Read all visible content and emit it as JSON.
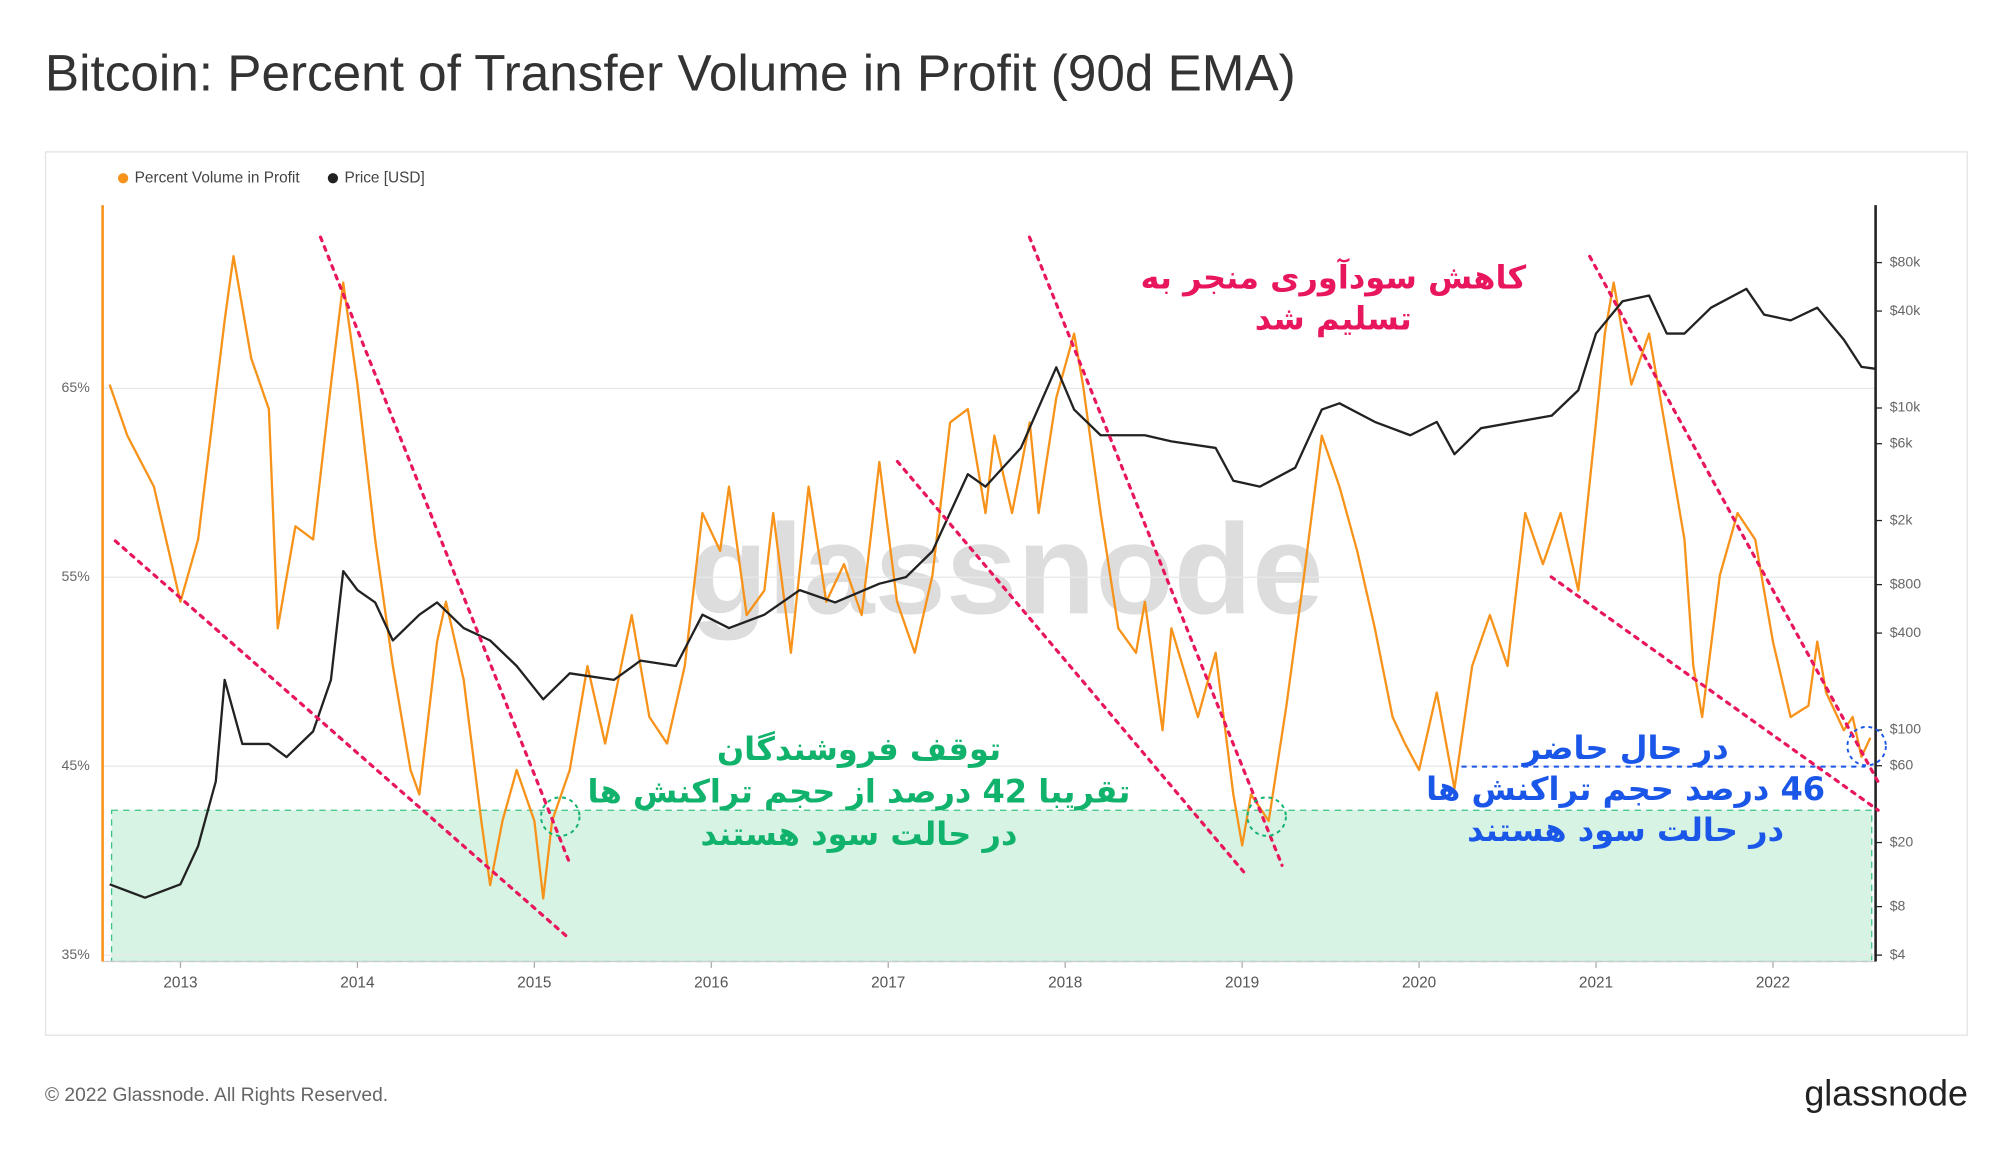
{
  "chart_data": {
    "type": "line",
    "title": "Bitcoin: Percent of Transfer Volume in Profit (90d EMA)",
    "watermark": "glassnode",
    "footer": "© 2022 Glassnode. All Rights Reserved.",
    "logo": "glassnode",
    "legend_position": "top-left",
    "xlim": [
      2012.56,
      2022.58
    ],
    "xticks": [
      2013,
      2014,
      2015,
      2016,
      2017,
      2018,
      2019,
      2020,
      2021,
      2022
    ],
    "ylim": [
      35,
      74.7
    ],
    "yticks": [
      {
        "value": 35,
        "label": "35%"
      },
      {
        "value": 45,
        "label": "45%"
      },
      {
        "value": 55,
        "label": "55%"
      },
      {
        "value": 65,
        "label": "65%"
      }
    ],
    "y2lim": [
      4,
      182000
    ],
    "y2log": true,
    "y2ticks": [
      {
        "value": 4,
        "label": "$4"
      },
      {
        "value": 8,
        "label": "$8"
      },
      {
        "value": 20,
        "label": "$20"
      },
      {
        "value": 60,
        "label": "$60"
      },
      {
        "value": 100,
        "label": "$100"
      },
      {
        "value": 400,
        "label": "$400"
      },
      {
        "value": 800,
        "label": "$800"
      },
      {
        "value": 2000,
        "label": "$2k"
      },
      {
        "value": 6000,
        "label": "$6k"
      },
      {
        "value": 10000,
        "label": "$10k"
      },
      {
        "value": 40000,
        "label": "$40k"
      },
      {
        "value": 80000,
        "label": "$80k"
      }
    ],
    "grid": true,
    "series": [
      {
        "name": "Percent Volume in Profit",
        "color": "#f7931a",
        "x": [
          2012.6,
          2012.7,
          2012.85,
          2013.0,
          2013.1,
          2013.25,
          2013.3,
          2013.4,
          2013.5,
          2013.55,
          2013.65,
          2013.75,
          2013.85,
          2013.92,
          2014.0,
          2014.1,
          2014.2,
          2014.3,
          2014.35,
          2014.45,
          2014.5,
          2014.6,
          2014.7,
          2014.75,
          2014.82,
          2014.9,
          2015.0,
          2015.05,
          2015.1,
          2015.2,
          2015.3,
          2015.4,
          2015.55,
          2015.65,
          2015.75,
          2015.85,
          2015.95,
          2016.05,
          2016.1,
          2016.2,
          2016.3,
          2016.35,
          2016.45,
          2016.55,
          2016.65,
          2016.75,
          2016.85,
          2016.95,
          2017.05,
          2017.15,
          2017.25,
          2017.35,
          2017.45,
          2017.55,
          2017.6,
          2017.7,
          2017.8,
          2017.85,
          2017.95,
          2018.05,
          2018.1,
          2018.2,
          2018.3,
          2018.4,
          2018.45,
          2018.55,
          2018.6,
          2018.75,
          2018.85,
          2018.95,
          2019.0,
          2019.05,
          2019.15,
          2019.25,
          2019.35,
          2019.45,
          2019.55,
          2019.65,
          2019.75,
          2019.85,
          2019.92,
          2020.0,
          2020.1,
          2020.2,
          2020.3,
          2020.4,
          2020.5,
          2020.6,
          2020.7,
          2020.8,
          2020.9,
          2021.0,
          2021.05,
          2021.1,
          2021.2,
          2021.3,
          2021.4,
          2021.5,
          2021.55,
          2021.6,
          2021.7,
          2021.8,
          2021.9,
          2022.0,
          2022.1,
          2022.2,
          2022.25,
          2022.3,
          2022.4,
          2022.45,
          2022.5,
          2022.55
        ],
        "values": [
          65.2,
          62.5,
          59.8,
          53.7,
          57,
          68.6,
          72,
          66.6,
          63.9,
          52.3,
          57.7,
          57,
          65.2,
          70.6,
          65.2,
          57,
          50.3,
          44.8,
          43.5,
          51.6,
          53.7,
          49.6,
          42.1,
          38.7,
          42.1,
          44.8,
          42.1,
          38,
          42.1,
          44.8,
          50.3,
          46.2,
          53,
          47.6,
          46.2,
          50.3,
          58.4,
          56.4,
          59.8,
          53,
          54.3,
          58.4,
          51,
          59.8,
          53.7,
          55.7,
          53,
          61.1,
          53.7,
          51,
          55.1,
          63.2,
          63.9,
          58.4,
          62.5,
          58.4,
          63.2,
          58.4,
          64.5,
          67.9,
          65.2,
          58.4,
          52.3,
          51,
          53.7,
          46.9,
          52.3,
          47.6,
          51,
          43.5,
          40.8,
          43.5,
          42.1,
          48.2,
          55.1,
          62.5,
          59.8,
          56.4,
          52.3,
          47.6,
          46.2,
          44.8,
          48.9,
          43.8,
          50.3,
          53,
          50.3,
          58.4,
          55.7,
          58.4,
          54.3,
          63.2,
          67.9,
          70.6,
          65.2,
          67.9,
          62.5,
          57,
          50.3,
          47.6,
          55.1,
          58.4,
          57,
          51.6,
          47.6,
          48.2,
          51.6,
          48.9,
          46.9,
          47.6,
          45.5,
          46.5
        ]
      },
      {
        "name": "Price [USD]",
        "color": "#222222",
        "axis": "y2",
        "x": [
          2012.6,
          2012.8,
          2013.0,
          2013.1,
          2013.2,
          2013.25,
          2013.35,
          2013.5,
          2013.6,
          2013.75,
          2013.85,
          2013.92,
          2014.0,
          2014.1,
          2014.2,
          2014.35,
          2014.45,
          2014.6,
          2014.75,
          2014.9,
          2015.05,
          2015.2,
          2015.45,
          2015.6,
          2015.8,
          2015.95,
          2016.1,
          2016.3,
          2016.5,
          2016.7,
          2016.95,
          2017.1,
          2017.25,
          2017.45,
          2017.55,
          2017.75,
          2017.95,
          2018.05,
          2018.2,
          2018.45,
          2018.6,
          2018.85,
          2018.95,
          2019.1,
          2019.3,
          2019.45,
          2019.55,
          2019.75,
          2019.95,
          2020.1,
          2020.2,
          2020.35,
          2020.55,
          2020.75,
          2020.9,
          2021.0,
          2021.15,
          2021.3,
          2021.4,
          2021.5,
          2021.65,
          2021.85,
          2021.95,
          2022.1,
          2022.25,
          2022.4,
          2022.5,
          2022.58
        ],
        "values": [
          11,
          9.1,
          11,
          19,
          48,
          205,
          82,
          82,
          68,
          98,
          205,
          970,
          740,
          620,
          360,
          520,
          620,
          430,
          360,
          250,
          155,
          225,
          205,
          270,
          250,
          520,
          430,
          520,
          740,
          620,
          810,
          890,
          1290,
          3880,
          3250,
          5650,
          17900,
          9770,
          6770,
          6770,
          6200,
          5650,
          3530,
          3250,
          4260,
          9770,
          10700,
          8200,
          6770,
          8200,
          5160,
          7490,
          8200,
          8960,
          12900,
          29000,
          46000,
          50000,
          29000,
          29000,
          42000,
          55000,
          38000,
          35000,
          42000,
          26600,
          18000,
          17500
        ]
      }
    ],
    "annotations": [
      {
        "color": "#e8175d",
        "lines": [
          "کاهش سودآوری منجر به",
          "تسلیم شد"
        ]
      },
      {
        "color": "#10b26c",
        "lines": [
          "توقف فروشندگان",
          "تقریبا 42 درصد از حجم تراکنش ها",
          "در حالت سود هستند"
        ]
      },
      {
        "color": "#1a56e8",
        "lines": [
          "در حال حاضر",
          "46 درصد حجم تراکنش ها",
          "در حالت سود هستند"
        ]
      }
    ]
  }
}
